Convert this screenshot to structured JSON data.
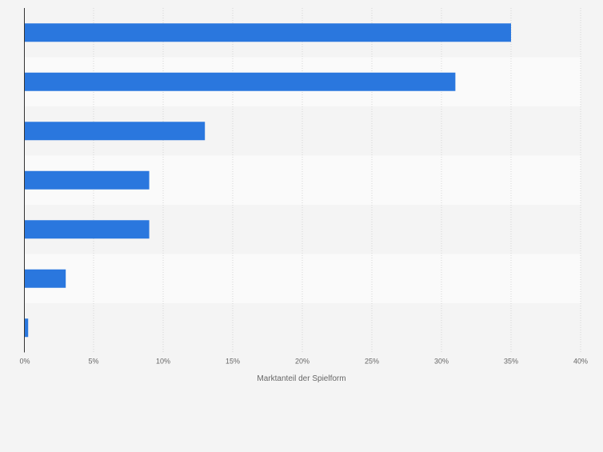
{
  "chart_data": {
    "type": "bar",
    "orientation": "horizontal",
    "categories": [
      "",
      "",
      "",
      "",
      "",
      "",
      ""
    ],
    "values": [
      35,
      31,
      13,
      9,
      9,
      3,
      0.3
    ],
    "xlabel": "Marktanteil der Spielform",
    "xlim": [
      0,
      40
    ],
    "ticks": [
      0,
      5,
      10,
      15,
      20,
      25,
      30,
      35,
      40
    ],
    "tick_labels": [
      "0%",
      "5%",
      "10%",
      "15%",
      "20%",
      "25%",
      "30%",
      "35%",
      "40%"
    ],
    "grid": true,
    "bar_color": "#2a77de",
    "band_colors": [
      "#f4f4f4",
      "#fafafa"
    ],
    "axis_color": "#333333",
    "grid_color": "#d6d6d6",
    "text_color": "#666666"
  }
}
